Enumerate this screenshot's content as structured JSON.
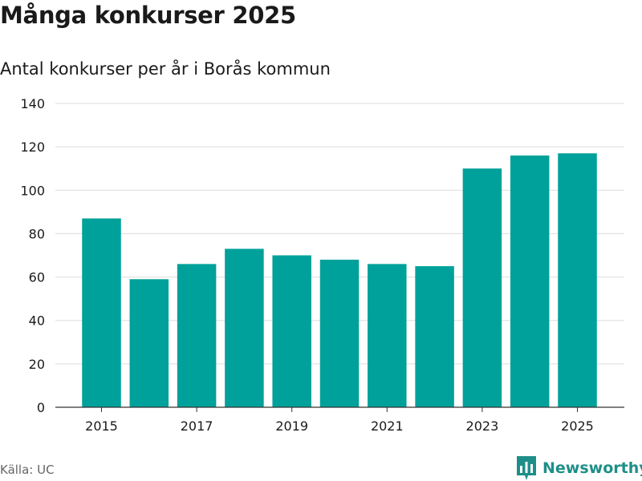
{
  "colors": {
    "bar": "#00a19a",
    "brand": "#1e8f88"
  },
  "chart_data": {
    "type": "bar",
    "title": "Många konkurser 2025",
    "subtitle": "Antal konkurser per år i Borås kommun",
    "xlabel": "",
    "ylabel": "",
    "categories": [
      "2015",
      "2016",
      "2017",
      "2018",
      "2019",
      "2020",
      "2021",
      "2022",
      "2023",
      "2024",
      "2025"
    ],
    "values": [
      87,
      59,
      66,
      73,
      70,
      68,
      66,
      65,
      110,
      116,
      117
    ],
    "x_tick_labels": [
      "2015",
      "2017",
      "2019",
      "2021",
      "2023",
      "2025"
    ],
    "y_ticks": [
      "0",
      "20",
      "40",
      "60",
      "80",
      "100",
      "120",
      "140"
    ],
    "ylim": [
      0,
      140
    ],
    "grid": "horizontal"
  },
  "footer": {
    "source": "Källa: UC",
    "brand": "Newsworthy",
    "brand_icon": "bar-chart-icon"
  }
}
